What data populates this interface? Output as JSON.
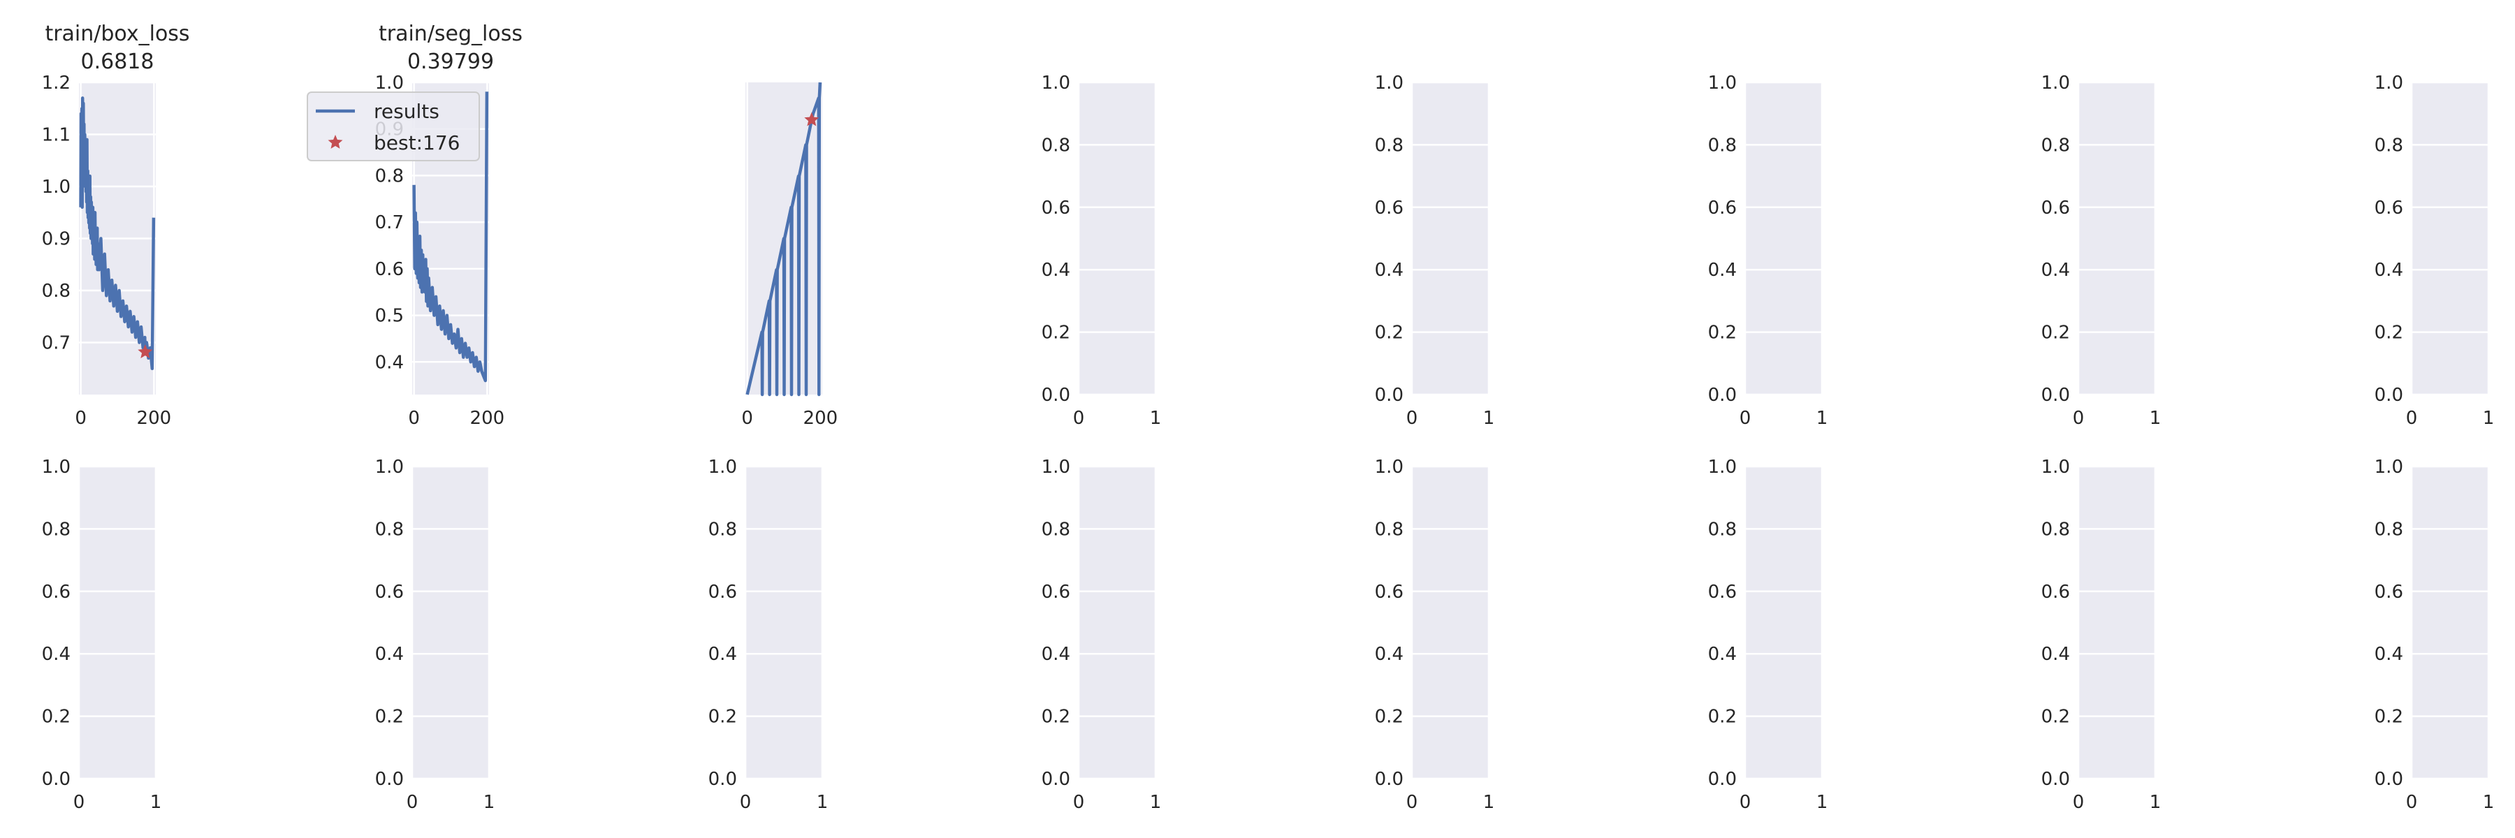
{
  "colors": {
    "axes_bg": "#EAEAF2",
    "grid": "#FFFFFF",
    "line": "#4C72B0",
    "best_marker": "#C44E52",
    "text": "#262626"
  },
  "chart_data": [
    {
      "type": "line",
      "title": "train/box_loss",
      "subtitle": "0.6818",
      "xlim": [
        -5,
        205
      ],
      "ylim": [
        0.6,
        1.2
      ],
      "yticks": [
        0.7,
        0.8,
        0.9,
        1.0,
        1.1,
        1.2
      ],
      "xticks": [
        0,
        200
      ],
      "series": [
        {
          "x": [
            0,
            1,
            2,
            3,
            4,
            5,
            6,
            7,
            8,
            9,
            10,
            11,
            12,
            13,
            14,
            15,
            16,
            17,
            18,
            19,
            20,
            21,
            22,
            23,
            24,
            25,
            26,
            27,
            28,
            29,
            30,
            31,
            32,
            33,
            34,
            35,
            36,
            37,
            38,
            39,
            40,
            41,
            42,
            43,
            44,
            45,
            46,
            47,
            48,
            49,
            50,
            55,
            60,
            65,
            70,
            75,
            80,
            85,
            90,
            95,
            100,
            105,
            110,
            115,
            120,
            125,
            130,
            135,
            140,
            145,
            150,
            155,
            160,
            165,
            170,
            175,
            176,
            180,
            185,
            190,
            195,
            199
          ],
          "y": [
            0.96,
            1.14,
            1.05,
            1.15,
            0.96,
            1.17,
            1.08,
            1.16,
            1.04,
            1.12,
            1.01,
            1.1,
            1.0,
            1.08,
            0.99,
            1.05,
            0.97,
            1.09,
            0.95,
            1.03,
            0.94,
            1.0,
            0.93,
            0.99,
            0.92,
            1.02,
            0.91,
            0.98,
            0.9,
            0.97,
            0.9,
            0.95,
            0.89,
            0.96,
            0.87,
            0.94,
            0.88,
            0.93,
            0.86,
            0.95,
            0.87,
            0.91,
            0.85,
            0.9,
            0.86,
            0.92,
            0.84,
            0.89,
            0.85,
            0.88,
            0.84,
            0.9,
            0.8,
            0.87,
            0.79,
            0.84,
            0.78,
            0.82,
            0.77,
            0.81,
            0.76,
            0.8,
            0.75,
            0.78,
            0.74,
            0.77,
            0.73,
            0.76,
            0.72,
            0.75,
            0.71,
            0.74,
            0.7,
            0.73,
            0.69,
            0.71,
            0.68,
            0.7,
            0.67,
            0.69,
            0.65,
            0.94
          ]
        }
      ],
      "best": {
        "x": 176,
        "y": 0.6818
      }
    },
    {
      "type": "line",
      "title": "train/seg_loss",
      "subtitle": "0.39799",
      "xlim": [
        -5,
        205
      ],
      "ylim": [
        0.33,
        1.0
      ],
      "yticks": [
        0.4,
        0.5,
        0.6,
        0.7,
        0.8,
        0.9,
        1.0
      ],
      "xticks": [
        0,
        200
      ],
      "series": [
        {
          "x": [
            0,
            2,
            4,
            6,
            8,
            10,
            12,
            14,
            16,
            18,
            20,
            22,
            24,
            26,
            28,
            30,
            32,
            34,
            36,
            38,
            40,
            45,
            50,
            55,
            60,
            65,
            70,
            75,
            80,
            85,
            90,
            95,
            100,
            105,
            110,
            115,
            120,
            125,
            130,
            135,
            140,
            145,
            150,
            155,
            160,
            165,
            170,
            175,
            180,
            185,
            190,
            195,
            199
          ],
          "y": [
            0.78,
            0.6,
            0.72,
            0.59,
            0.7,
            0.58,
            0.66,
            0.57,
            0.67,
            0.56,
            0.64,
            0.55,
            0.63,
            0.56,
            0.61,
            0.55,
            0.62,
            0.53,
            0.6,
            0.52,
            0.58,
            0.51,
            0.56,
            0.5,
            0.54,
            0.48,
            0.52,
            0.47,
            0.51,
            0.46,
            0.5,
            0.45,
            0.48,
            0.44,
            0.46,
            0.43,
            0.47,
            0.42,
            0.45,
            0.41,
            0.44,
            0.41,
            0.43,
            0.4,
            0.42,
            0.39,
            0.41,
            0.38,
            0.4,
            0.38,
            0.37,
            0.36,
            0.98
          ]
        }
      ],
      "legend": [
        {
          "label": "results"
        },
        {
          "label": "best:176"
        }
      ]
    },
    {
      "type": "line",
      "title": "",
      "xlim": [
        -5,
        205
      ],
      "ylim": [
        0,
        1
      ],
      "xticks": [
        0,
        200
      ],
      "series": [
        {
          "x": [
            0,
            40,
            41,
            42,
            60,
            61,
            62,
            80,
            81,
            82,
            100,
            101,
            102,
            120,
            121,
            122,
            140,
            141,
            142,
            160,
            161,
            162,
            176,
            180,
            195,
            196,
            197,
            199
          ],
          "y": [
            0.0,
            0.2,
            0.0,
            0.2,
            0.3,
            0.0,
            0.3,
            0.4,
            0.0,
            0.4,
            0.5,
            0.0,
            0.5,
            0.6,
            0.0,
            0.6,
            0.7,
            0.0,
            0.7,
            0.8,
            0.0,
            0.8,
            0.88,
            0.9,
            0.95,
            0.0,
            0.95,
            1.0
          ]
        }
      ],
      "best": {
        "x": 176,
        "y": 0.88
      }
    },
    {
      "type": "line",
      "title": "",
      "xlim": [
        0,
        1
      ],
      "ylim": [
        0,
        1
      ],
      "xticks": [
        0,
        1
      ],
      "yticks": [
        0.0,
        0.2,
        0.4,
        0.6,
        0.8,
        1.0
      ]
    },
    {
      "type": "line",
      "title": "",
      "xlim": [
        0,
        1
      ],
      "ylim": [
        0,
        1
      ],
      "xticks": [
        0,
        1
      ],
      "yticks": [
        0.0,
        0.2,
        0.4,
        0.6,
        0.8,
        1.0
      ]
    },
    {
      "type": "line",
      "title": "",
      "xlim": [
        0,
        1
      ],
      "ylim": [
        0,
        1
      ],
      "xticks": [
        0,
        1
      ],
      "yticks": [
        0.0,
        0.2,
        0.4,
        0.6,
        0.8,
        1.0
      ]
    },
    {
      "type": "line",
      "title": "",
      "xlim": [
        0,
        1
      ],
      "ylim": [
        0,
        1
      ],
      "xticks": [
        0,
        1
      ],
      "yticks": [
        0.0,
        0.2,
        0.4,
        0.6,
        0.8,
        1.0
      ]
    },
    {
      "type": "line",
      "title": "",
      "xlim": [
        0,
        1
      ],
      "ylim": [
        0,
        1
      ],
      "xticks": [
        0,
        1
      ],
      "yticks": [
        0.0,
        0.2,
        0.4,
        0.6,
        0.8,
        1.0
      ]
    },
    {
      "type": "line",
      "title": "",
      "xlim": [
        0,
        1
      ],
      "ylim": [
        0,
        1
      ],
      "xticks": [
        0,
        1
      ],
      "yticks": [
        0.0,
        0.2,
        0.4,
        0.6,
        0.8,
        1.0
      ]
    },
    {
      "type": "line",
      "title": "",
      "xlim": [
        0,
        1
      ],
      "ylim": [
        0,
        1
      ],
      "xticks": [
        0,
        1
      ],
      "yticks": [
        0.0,
        0.2,
        0.4,
        0.6,
        0.8,
        1.0
      ]
    },
    {
      "type": "line",
      "title": "",
      "xlim": [
        0,
        1
      ],
      "ylim": [
        0,
        1
      ],
      "xticks": [
        0,
        1
      ],
      "yticks": [
        0.0,
        0.2,
        0.4,
        0.6,
        0.8,
        1.0
      ]
    },
    {
      "type": "line",
      "title": "",
      "xlim": [
        0,
        1
      ],
      "ylim": [
        0,
        1
      ],
      "xticks": [
        0,
        1
      ],
      "yticks": [
        0.0,
        0.2,
        0.4,
        0.6,
        0.8,
        1.0
      ]
    },
    {
      "type": "line",
      "title": "",
      "xlim": [
        0,
        1
      ],
      "ylim": [
        0,
        1
      ],
      "xticks": [
        0,
        1
      ],
      "yticks": [
        0.0,
        0.2,
        0.4,
        0.6,
        0.8,
        1.0
      ]
    },
    {
      "type": "line",
      "title": "",
      "xlim": [
        0,
        1
      ],
      "ylim": [
        0,
        1
      ],
      "xticks": [
        0,
        1
      ],
      "yticks": [
        0.0,
        0.2,
        0.4,
        0.6,
        0.8,
        1.0
      ]
    },
    {
      "type": "line",
      "title": "",
      "xlim": [
        0,
        1
      ],
      "ylim": [
        0,
        1
      ],
      "xticks": [
        0,
        1
      ],
      "yticks": [
        0.0,
        0.2,
        0.4,
        0.6,
        0.8,
        1.0
      ]
    },
    {
      "type": "line",
      "title": "",
      "xlim": [
        0,
        1
      ],
      "ylim": [
        0,
        1
      ],
      "xticks": [
        0,
        1
      ],
      "yticks": [
        0.0,
        0.2,
        0.4,
        0.6,
        0.8,
        1.0
      ]
    }
  ]
}
